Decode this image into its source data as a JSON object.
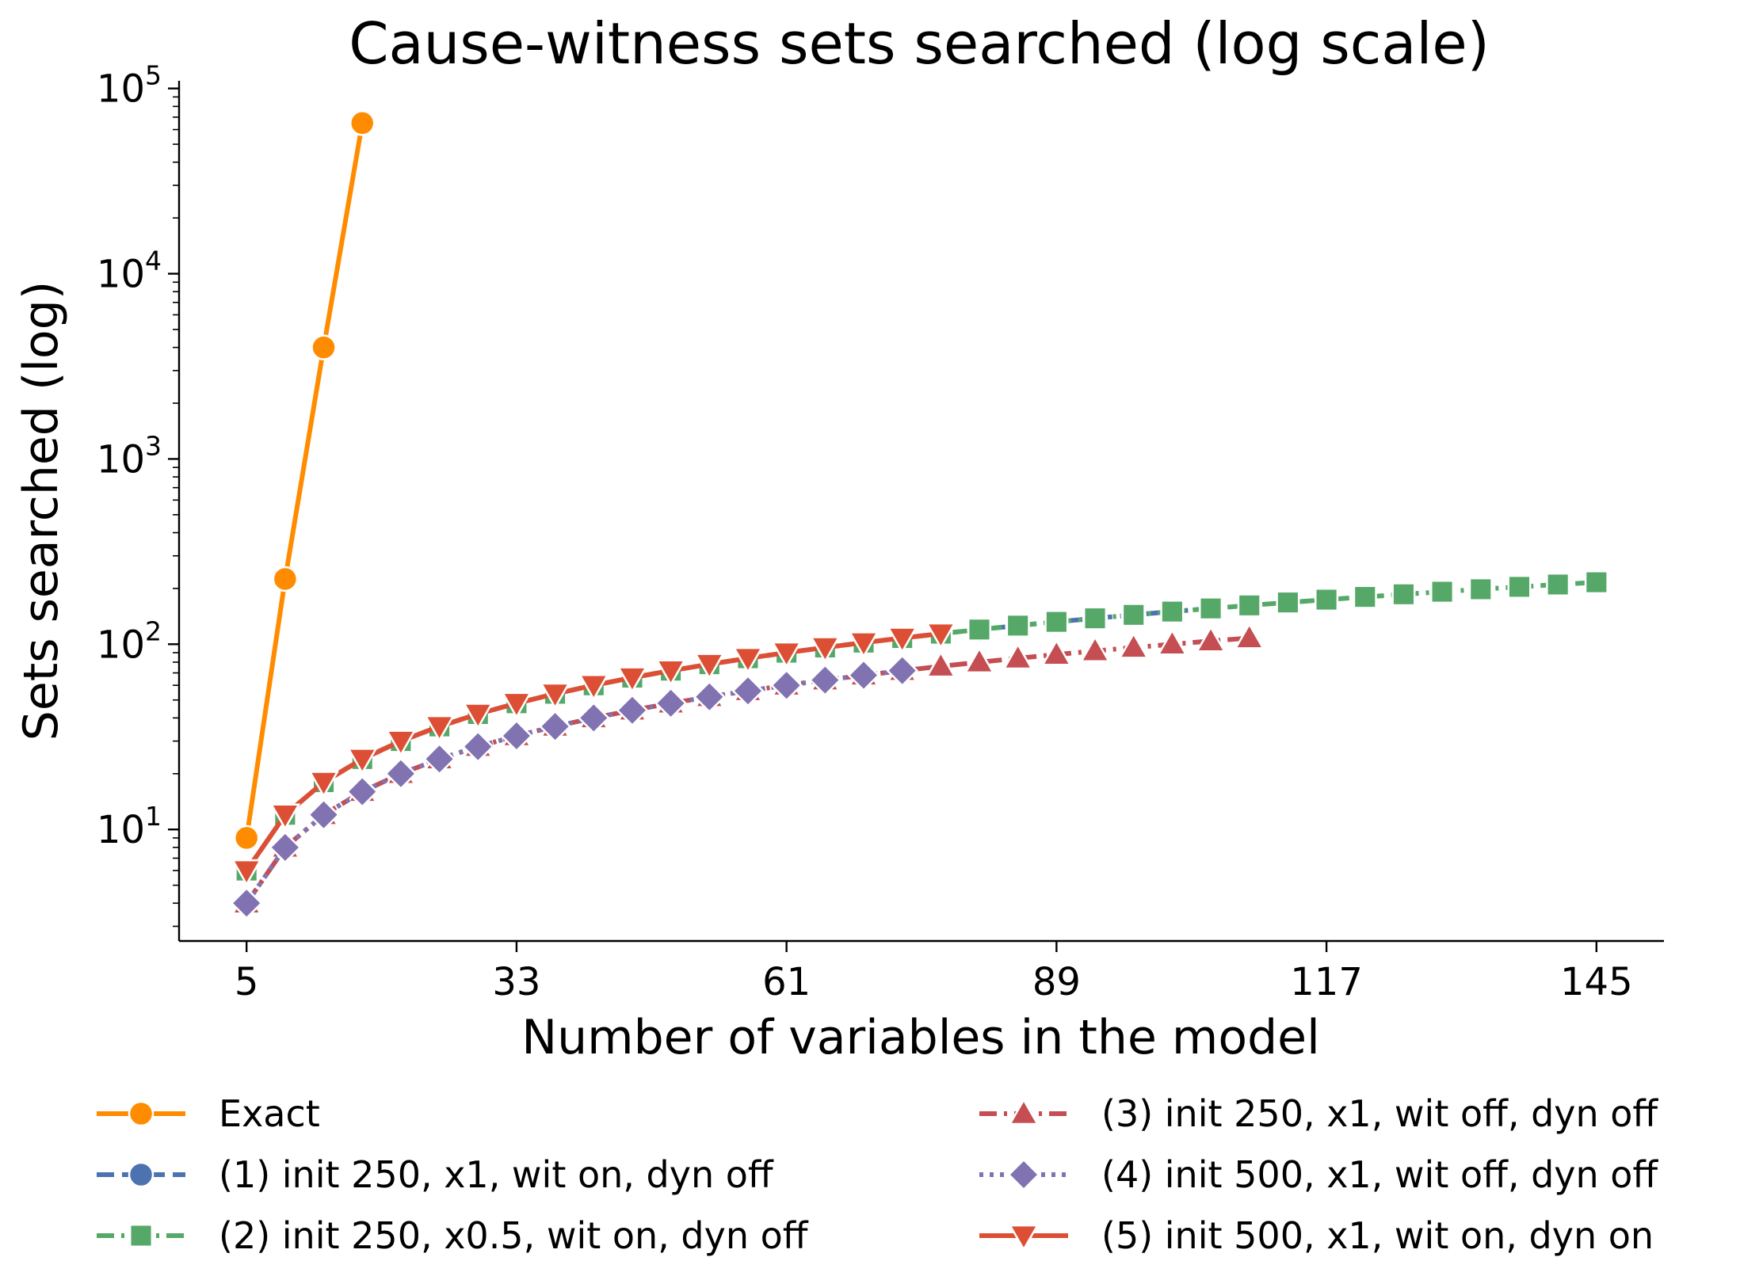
{
  "chart_data": {
    "type": "line",
    "title": "Cause-witness sets searched (log scale)",
    "xlabel": "Number of variables in the model",
    "ylabel": "Sets searched (log)",
    "xlim": [
      -2,
      152
    ],
    "ylim": [
      2.5,
      110000
    ],
    "x_scale": "linear",
    "y_scale": "log",
    "x_ticks": [
      {
        "value": 5,
        "label": "5"
      },
      {
        "value": 33,
        "label": "33"
      },
      {
        "value": 61,
        "label": "61"
      },
      {
        "value": 89,
        "label": "89"
      },
      {
        "value": 117,
        "label": "117"
      },
      {
        "value": 145,
        "label": "145"
      }
    ],
    "y_ticks": [
      {
        "value": 10,
        "base": "10",
        "exp": "1"
      },
      {
        "value": 100,
        "base": "10",
        "exp": "2"
      },
      {
        "value": 1000,
        "base": "10",
        "exp": "3"
      },
      {
        "value": 10000,
        "base": "10",
        "exp": "4"
      },
      {
        "value": 100000,
        "base": "10",
        "exp": "5"
      }
    ],
    "grid": false,
    "legend_position": "bottom",
    "series": [
      {
        "name": "Exact",
        "color": "#ff8c00",
        "marker": "circle",
        "dash": "solid",
        "x": [
          5,
          9,
          13,
          17
        ],
        "y": [
          9,
          225,
          4000,
          65000
        ]
      },
      {
        "name": "(1) init 250, x1, wit on, dyn off",
        "color": "#4c72b0",
        "marker": "circle",
        "dash": "dash",
        "x": [
          5,
          9,
          13,
          17,
          21,
          25,
          29,
          33,
          37,
          41,
          45,
          49,
          53,
          57,
          61,
          65,
          69,
          73,
          77,
          81,
          85,
          89,
          93,
          97,
          101,
          105
        ],
        "y": [
          6,
          12,
          18,
          24,
          30,
          36,
          42,
          48,
          54,
          60,
          66,
          72,
          78,
          84,
          90,
          96,
          102,
          108,
          114,
          120,
          126,
          132,
          138,
          144,
          150,
          156
        ]
      },
      {
        "name": "(2) init 250, x0.5, wit on, dyn off",
        "color": "#55a868",
        "marker": "square",
        "dash": "dashdot",
        "x": [
          5,
          9,
          13,
          17,
          21,
          25,
          29,
          33,
          37,
          41,
          45,
          49,
          53,
          57,
          61,
          65,
          69,
          73,
          77,
          81,
          85,
          89,
          93,
          97,
          101,
          105,
          109,
          113,
          117,
          121,
          125,
          129,
          133,
          137,
          141,
          145
        ],
        "y": [
          6,
          12,
          18,
          24,
          30,
          36,
          42,
          48,
          54,
          60,
          66,
          72,
          78,
          84,
          90,
          96,
          102,
          108,
          114,
          120,
          126,
          132,
          138,
          144,
          150,
          156,
          162,
          168,
          174,
          180,
          186,
          192,
          198,
          204,
          210,
          216
        ]
      },
      {
        "name": "(3) init 250, x1, wit off, dyn off",
        "color": "#c44e52",
        "marker": "triangle-up",
        "dash": "dashdot",
        "x": [
          5,
          9,
          13,
          17,
          21,
          25,
          29,
          33,
          37,
          41,
          45,
          49,
          53,
          57,
          61,
          65,
          69,
          73,
          77,
          81,
          85,
          89,
          93,
          97,
          101,
          105,
          109
        ],
        "y": [
          4,
          8,
          12,
          16,
          20,
          24,
          28,
          32,
          36,
          40,
          44,
          48,
          52,
          56,
          60,
          64,
          68,
          72,
          76,
          80,
          84,
          88,
          92,
          96,
          100,
          104,
          108
        ]
      },
      {
        "name": "(4) init 500, x1, wit off, dyn off",
        "color": "#8172b2",
        "marker": "diamond",
        "dash": "dot",
        "x": [
          5,
          9,
          13,
          17,
          21,
          25,
          29,
          33,
          37,
          41,
          45,
          49,
          53,
          57,
          61,
          65,
          69,
          73
        ],
        "y": [
          4,
          8,
          12,
          16,
          20,
          24,
          28,
          32,
          36,
          40,
          44,
          48,
          52,
          56,
          60,
          64,
          68,
          72
        ]
      },
      {
        "name": "(5) init 500, x1, wit on, dyn on",
        "color": "#dd4f35",
        "marker": "triangle-down",
        "dash": "solid",
        "x": [
          5,
          9,
          13,
          17,
          21,
          25,
          29,
          33,
          37,
          41,
          45,
          49,
          53,
          57,
          61,
          65,
          69,
          73,
          77
        ],
        "y": [
          6,
          12,
          18,
          24,
          30,
          36,
          42,
          48,
          54,
          60,
          66,
          72,
          78,
          84,
          90,
          96,
          102,
          108,
          114
        ]
      }
    ]
  }
}
